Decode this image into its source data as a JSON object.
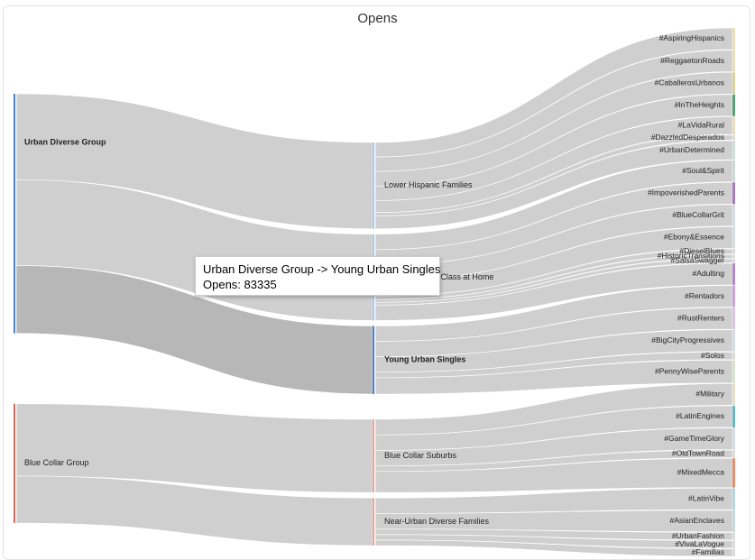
{
  "chart_data": {
    "type": "sankey",
    "title": "Opens",
    "value_label": "Opens",
    "colors": {
      "link": "#cfcfcf",
      "link_highlight": "#b7b7b7",
      "group_blue": "#4a7fd4",
      "group_red": "#d9695a",
      "segment_blue": "#a9c6ef",
      "segment_red": "#e8a294"
    },
    "nodes": {
      "level1": [
        {
          "name": "Urban Diverse Group",
          "value": 265,
          "color": "#4a7fd4"
        },
        {
          "name": "Blue Collar Group",
          "value": 132,
          "color": "#d9695a"
        }
      ],
      "level2": [
        {
          "name": "Lower Hispanic Families",
          "value": 95,
          "color": "#a9c6ef",
          "parent": "Urban Diverse Group"
        },
        {
          "name": "Urban Working Class at Home",
          "value": 95,
          "color": "#a9c6ef",
          "parent": "Urban Diverse Group"
        },
        {
          "name": "Young Urban Singles",
          "value": 75,
          "color": "#4a7fd4",
          "parent": "Urban Diverse Group"
        },
        {
          "name": "Blue Collar Suburbs",
          "value": 80,
          "color": "#e8a294",
          "parent": "Blue Collar Group"
        },
        {
          "name": "Near-Urban Diverse Families",
          "value": 52,
          "color": "#e8a294",
          "parent": "Blue Collar Group"
        }
      ],
      "level3": [
        {
          "name": "#AspiringHispanics",
          "value": 17,
          "color": "#e9dfbf",
          "parent": "Lower Hispanic Families"
        },
        {
          "name": "#ReggaetonRoads",
          "value": 17,
          "color": "#e9dfbf",
          "parent": "Lower Hispanic Families"
        },
        {
          "name": "#CaballerosUrbanos",
          "value": 17,
          "color": "#d8d2a0",
          "parent": "Lower Hispanic Families"
        },
        {
          "name": "#InTheHeights",
          "value": 17,
          "color": "#5aa07c",
          "parent": "Lower Hispanic Families"
        },
        {
          "name": "#LaVidaRural",
          "value": 14,
          "color": "#e9dfbf",
          "parent": "Lower Hispanic Families"
        },
        {
          "name": "#DazzledDesperados",
          "value": 4,
          "color": "#dddddd",
          "parent": "Lower Hispanic Families"
        },
        {
          "name": "#UrbanDetermined",
          "value": 15,
          "color": "#cfdfd7",
          "parent": "Lower Hispanic Families"
        },
        {
          "name": "#Soul&Spirit",
          "value": 17,
          "color": "#cfdad6",
          "parent": "Urban Working Class at Home"
        },
        {
          "name": "#ImpoverishedParents",
          "value": 17,
          "color": "#a27bb8",
          "parent": "Urban Working Class at Home"
        },
        {
          "name": "#BlueCollarGrit",
          "value": 17,
          "color": "#d6dde1",
          "parent": "Urban Working Class at Home"
        },
        {
          "name": "#Ebony&Essence",
          "value": 17,
          "color": "#d6dde1",
          "parent": "Urban Working Class at Home"
        },
        {
          "name": "#DieselBlues",
          "value": 4,
          "color": "#dddddd",
          "parent": "Urban Working Class at Home"
        },
        {
          "name": "#HistoricTransitions",
          "value": 3,
          "color": "#dddddd",
          "parent": "Urban Working Class at Home"
        },
        {
          "name": "#SalsaSwagger",
          "value": 3,
          "color": "#dddddd",
          "parent": "Urban Working Class at Home"
        },
        {
          "name": "#Adulting",
          "value": 17,
          "color": "#b58ac9",
          "parent": "Urban Working Class at Home"
        },
        {
          "name": "#Rentadors",
          "value": 17,
          "color": "#c9a4d8",
          "parent": "Young Urban Singles"
        },
        {
          "name": "#RustRenters",
          "value": 17,
          "color": "#d9c6e4",
          "parent": "Young Urban Singles"
        },
        {
          "name": "#BigCityProgressives",
          "value": 17,
          "color": "#d6dde1",
          "parent": "Young Urban Singles"
        },
        {
          "name": "#Solos",
          "value": 6,
          "color": "#dddddd",
          "parent": "Young Urban Singles"
        },
        {
          "name": "#PennyWiseParents",
          "value": 18,
          "color": "#dbe3d4",
          "parent": "Young Urban Singles"
        },
        {
          "name": "#Military",
          "value": 17,
          "color": "#e4e1c8",
          "parent": "Blue Collar Suburbs"
        },
        {
          "name": "#LatinEngines",
          "value": 17,
          "color": "#6cb5c4",
          "parent": "Blue Collar Suburbs"
        },
        {
          "name": "#GameTimeGlory",
          "value": 17,
          "color": "#d6dde1",
          "parent": "Blue Collar Suburbs"
        },
        {
          "name": "#OldTownRoad",
          "value": 6,
          "color": "#dddddd",
          "parent": "Blue Collar Suburbs"
        },
        {
          "name": "#MixedMecca",
          "value": 23,
          "color": "#e38e6e",
          "parent": "Blue Collar Suburbs"
        },
        {
          "name": "#LatinVibe",
          "value": 17,
          "color": "#b7d6dc",
          "parent": "Near-Urban Diverse Families"
        },
        {
          "name": "#AsianEnclaves",
          "value": 17,
          "color": "#c7d8dc",
          "parent": "Near-Urban Diverse Families"
        },
        {
          "name": "#UrbanFashion",
          "value": 6,
          "color": "#dddddd",
          "parent": "Near-Urban Diverse Families"
        },
        {
          "name": "#VivaLaVogue",
          "value": 6,
          "color": "#dddddd",
          "parent": "Near-Urban Diverse Families"
        },
        {
          "name": "#Familias",
          "value": 6,
          "color": "#dddddd",
          "parent": "Near-Urban Diverse Families"
        }
      ]
    },
    "highlighted_link": {
      "source": "Urban Diverse Group",
      "target": "Young Urban Singles",
      "value": 83335
    }
  },
  "tooltip": {
    "line1": "Urban Diverse Group -> Young Urban Singles",
    "line2": "Opens: 83335"
  }
}
